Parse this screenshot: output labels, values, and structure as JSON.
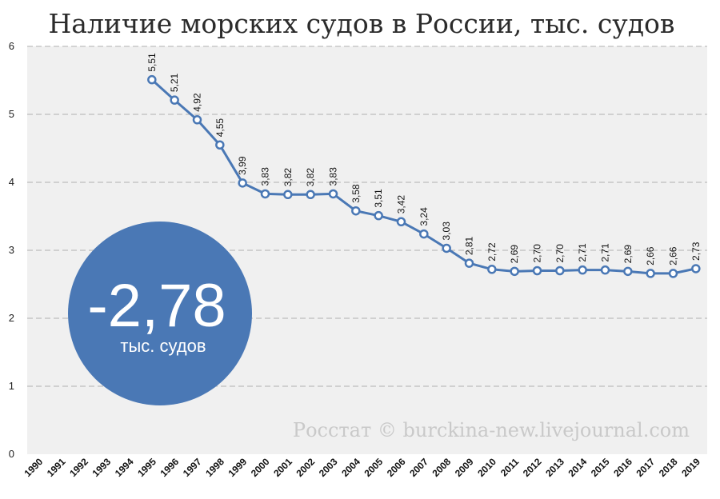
{
  "chart_data": {
    "type": "line",
    "title": "Наличие морских судов в России, тыс. судов",
    "xlabel": "",
    "ylabel": "",
    "ylim": [
      0,
      6
    ],
    "yticks": [
      "0",
      "1",
      "2",
      "3",
      "4",
      "5",
      "6"
    ],
    "categories": [
      "1990",
      "1991",
      "1992",
      "1993",
      "1994",
      "1995",
      "1996",
      "1997",
      "1998",
      "1999",
      "2000",
      "2001",
      "2002",
      "2003",
      "2004",
      "2005",
      "2006",
      "2007",
      "2008",
      "2009",
      "2010",
      "2011",
      "2012",
      "2013",
      "2014",
      "2015",
      "2016",
      "2017",
      "2018",
      "2019"
    ],
    "series": [
      {
        "values": [
          null,
          null,
          null,
          null,
          null,
          5.51,
          5.21,
          4.92,
          4.55,
          3.99,
          3.83,
          3.82,
          3.82,
          3.83,
          3.58,
          3.51,
          3.42,
          3.24,
          3.03,
          2.81,
          2.72,
          2.69,
          2.7,
          2.7,
          2.71,
          2.71,
          2.69,
          2.66,
          2.66,
          2.73
        ],
        "labels": [
          "",
          "",
          "",
          "",
          "",
          "5,51",
          "5,21",
          "4,92",
          "4,55",
          "3,99",
          "3,83",
          "3,82",
          "3,82",
          "3,83",
          "3,58",
          "3,51",
          "3,42",
          "3,24",
          "3,03",
          "2,81",
          "2,72",
          "2,69",
          "2,70",
          "2,70",
          "2,71",
          "2,71",
          "2,69",
          "2,66",
          "2,66",
          "2,73"
        ],
        "color": "#4a78b5"
      }
    ],
    "grid": true,
    "legend": "none",
    "plot_background": "#f0f0f0"
  },
  "badge": {
    "value": "-2,78",
    "unit": "тыс. судов",
    "color": "#4a78b5"
  },
  "credit": "Росстат © burckina-new.livejournal.com"
}
